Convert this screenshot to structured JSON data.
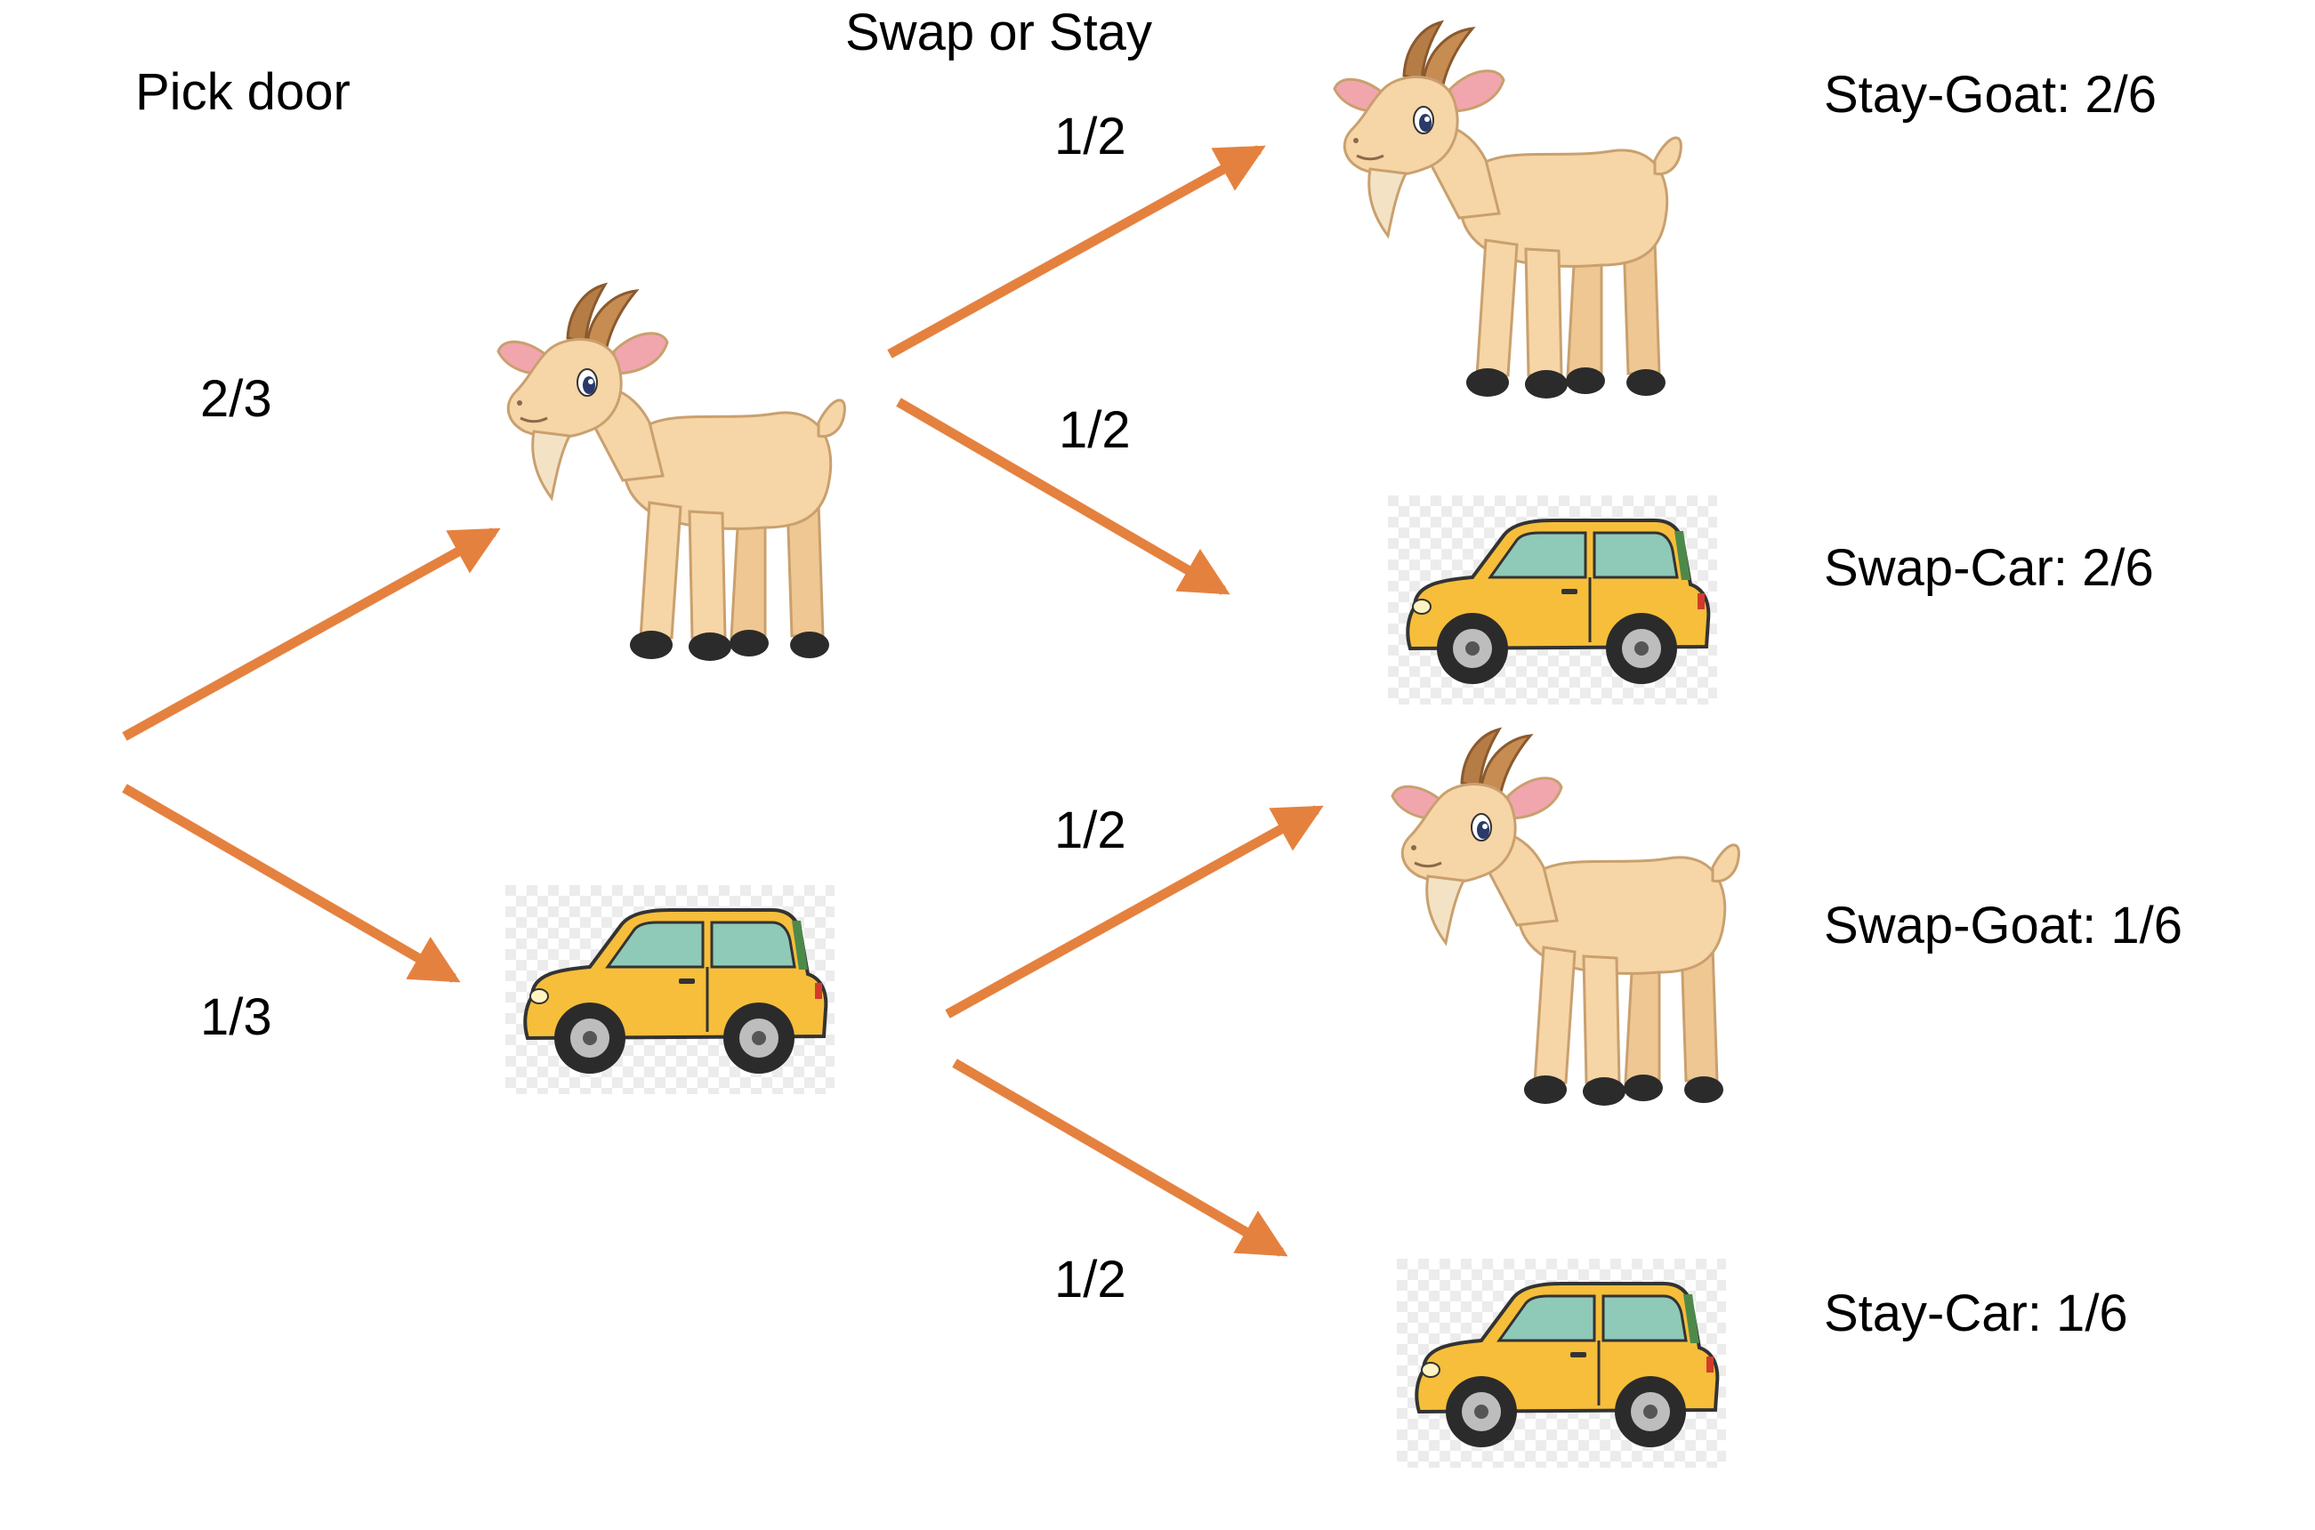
{
  "headers": {
    "pick_door": "Pick door",
    "swap_or_stay": "Swap or Stay"
  },
  "first_stage": {
    "goat_probability": "2/3",
    "car_probability": "1/3"
  },
  "second_stage": {
    "goat_branch_top": "1/2",
    "goat_branch_bottom": "1/2",
    "car_branch_top": "1/2",
    "car_branch_bottom": "1/2"
  },
  "outcomes": [
    {
      "label": "Stay-Goat: 2/6",
      "image": "goat-icon"
    },
    {
      "label": "Swap-Car: 2/6",
      "image": "car-icon"
    },
    {
      "label": "Swap-Goat: 1/6",
      "image": "goat-icon"
    },
    {
      "label": "Stay-Car: 1/6",
      "image": "car-icon"
    }
  ],
  "colors": {
    "arrow": "#E5813E",
    "goat_body": "#F6D5A6",
    "goat_ear": "#F1A6AE",
    "goat_horn": "#B67C46",
    "car_body": "#F6BE3A",
    "car_window": "#8FC9B8"
  }
}
